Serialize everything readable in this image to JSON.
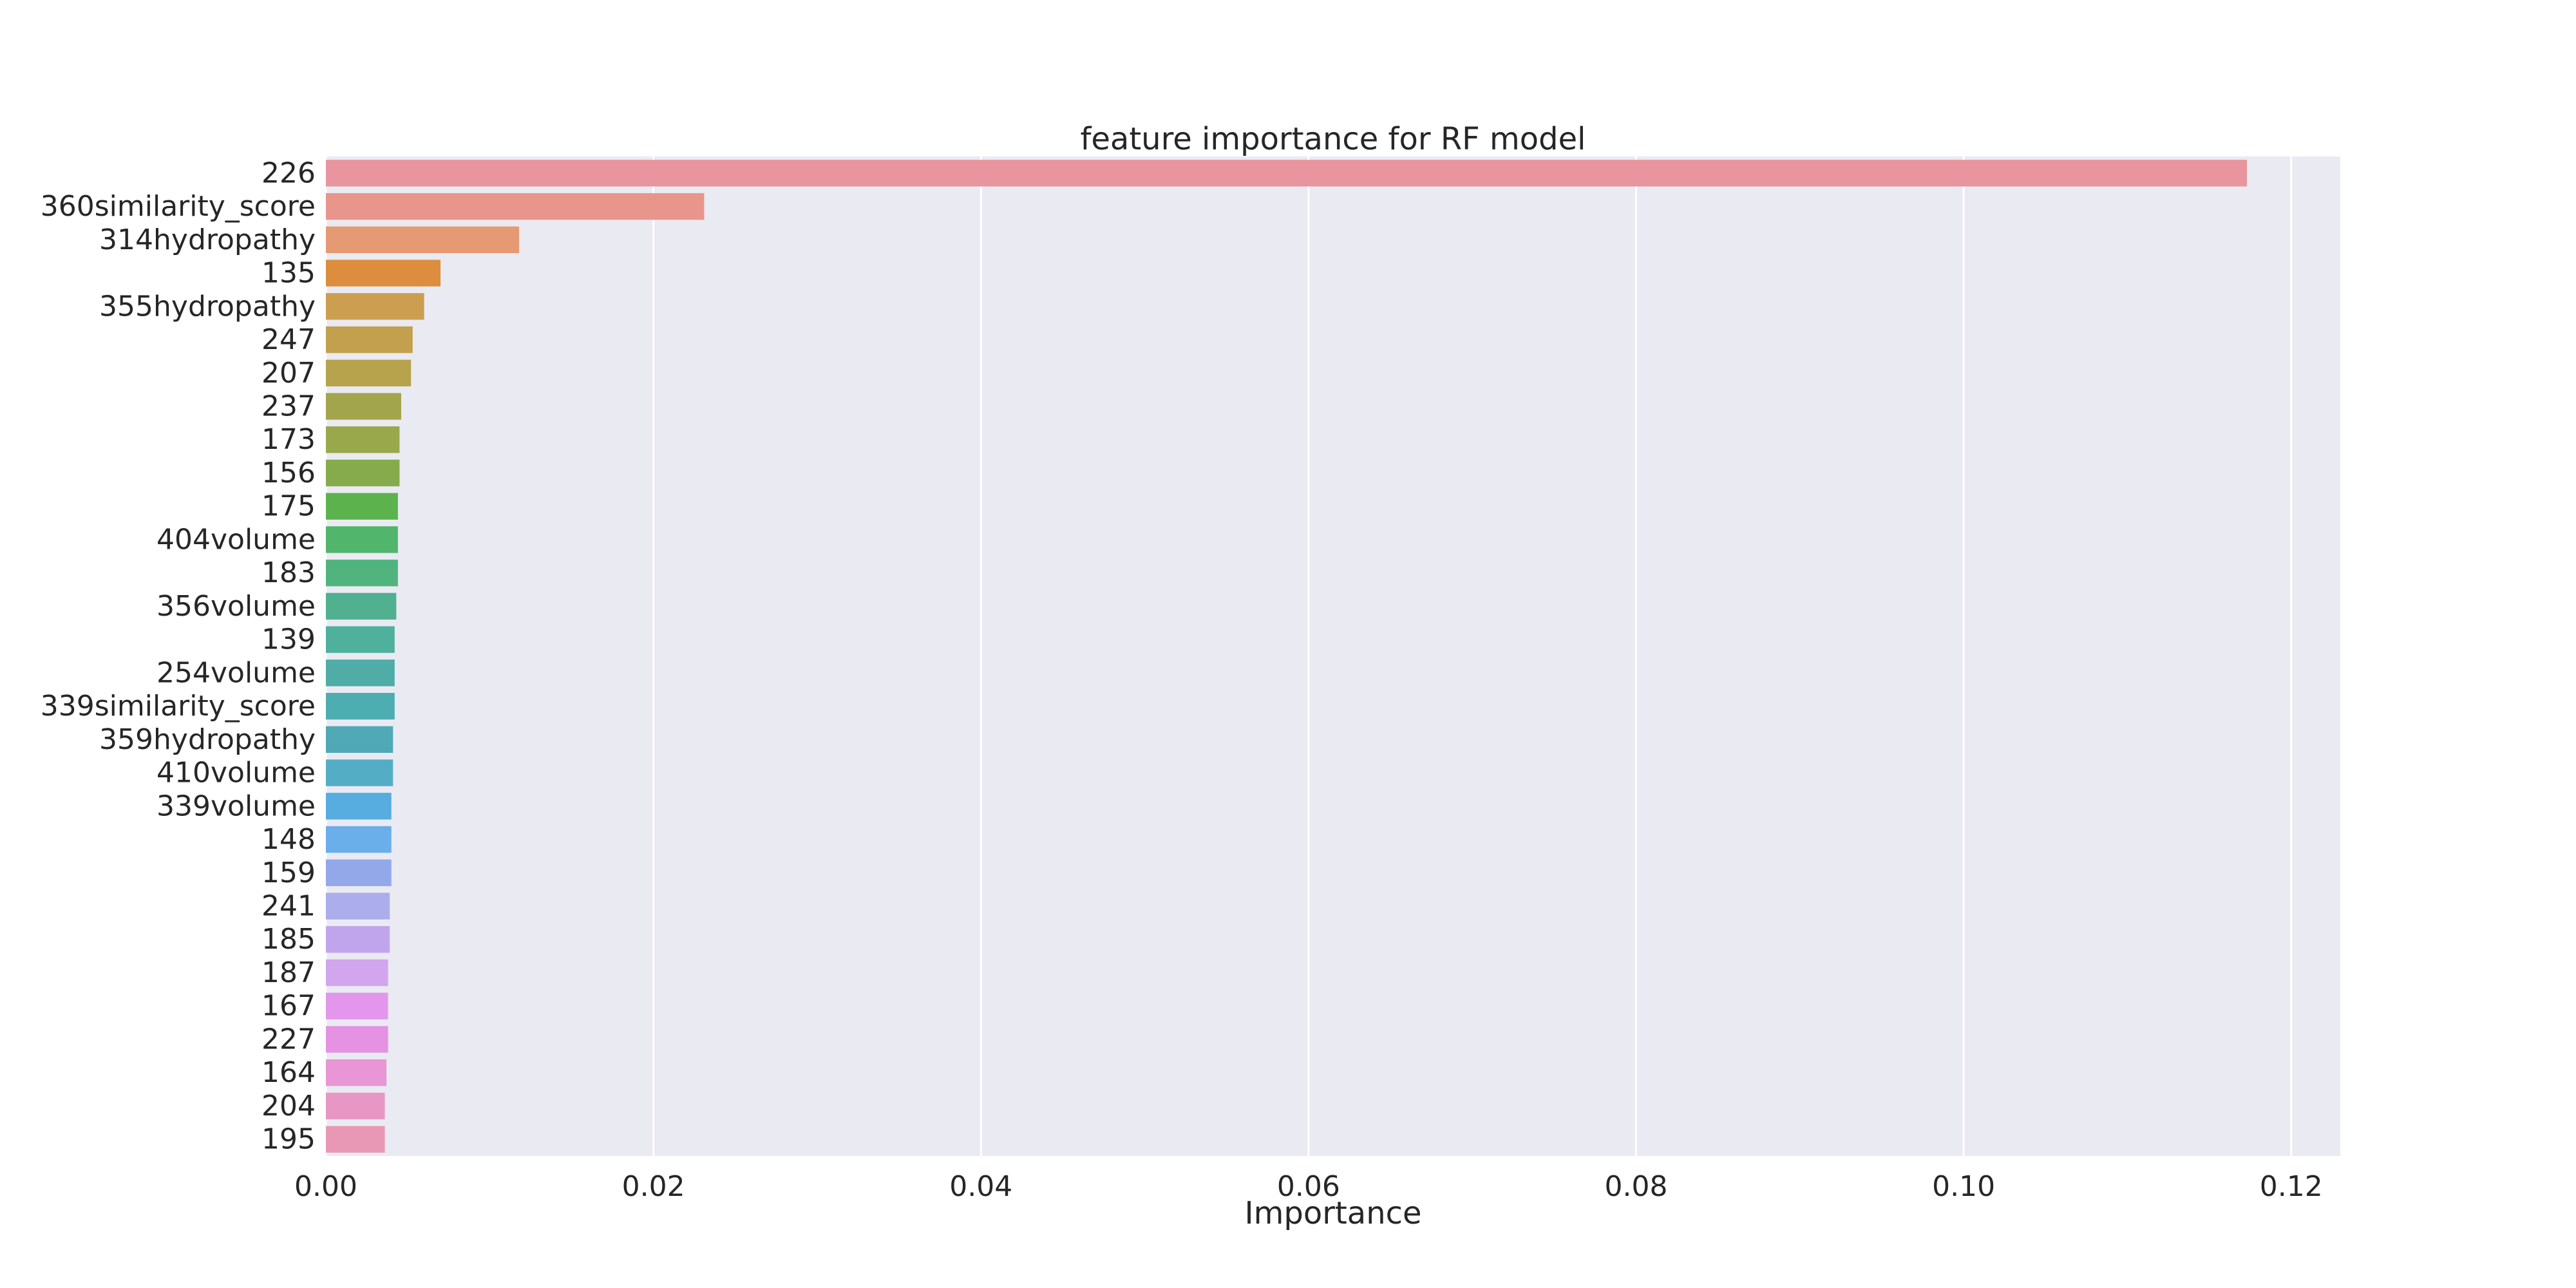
{
  "chart_data": {
    "type": "bar",
    "orientation": "horizontal",
    "title": "feature importance for RF model",
    "xlabel": "Importance",
    "ylabel": "",
    "xlim": [
      0,
      0.123
    ],
    "x_ticks": [
      0.0,
      0.02,
      0.04,
      0.06,
      0.08,
      0.1,
      0.12
    ],
    "x_tick_labels": [
      "0.00",
      "0.02",
      "0.04",
      "0.06",
      "0.08",
      "0.10",
      "0.12"
    ],
    "grid": true,
    "categories": [
      "226",
      "360similarity_score",
      "314hydropathy",
      "135",
      "355hydropathy",
      "247",
      "207",
      "237",
      "173",
      "156",
      "175",
      "404volume",
      "183",
      "356volume",
      "139",
      "254volume",
      "339similarity_score",
      "359hydropathy",
      "410volume",
      "339volume",
      "148",
      "159",
      "241",
      "185",
      "187",
      "167",
      "227",
      "164",
      "204",
      "195"
    ],
    "values": [
      0.1173,
      0.0231,
      0.0118,
      0.007,
      0.006,
      0.0053,
      0.0052,
      0.0046,
      0.0045,
      0.0045,
      0.0044,
      0.0044,
      0.0044,
      0.0043,
      0.0042,
      0.0042,
      0.0042,
      0.0041,
      0.0041,
      0.004,
      0.004,
      0.004,
      0.0039,
      0.0039,
      0.0038,
      0.0038,
      0.0038,
      0.0037,
      0.0036,
      0.0036
    ],
    "colors": [
      "#e8959f",
      "#e8958c",
      "#e69a74",
      "#dc8e3e",
      "#cc9e50",
      "#c3a04e",
      "#b6a34c",
      "#a3a54c",
      "#9aa84c",
      "#86ab4c",
      "#5cb34e",
      "#52b56c",
      "#51b47f",
      "#50b08f",
      "#4fb09e",
      "#4faca7",
      "#4dadb0",
      "#4fa9b6",
      "#53aec5",
      "#57ace0",
      "#6aaeea",
      "#93a8e8",
      "#acaded",
      "#c0a5ed",
      "#d2a6ee",
      "#e297ec",
      "#e592e2",
      "#e896d6",
      "#e797c3",
      "#e898b5"
    ]
  }
}
